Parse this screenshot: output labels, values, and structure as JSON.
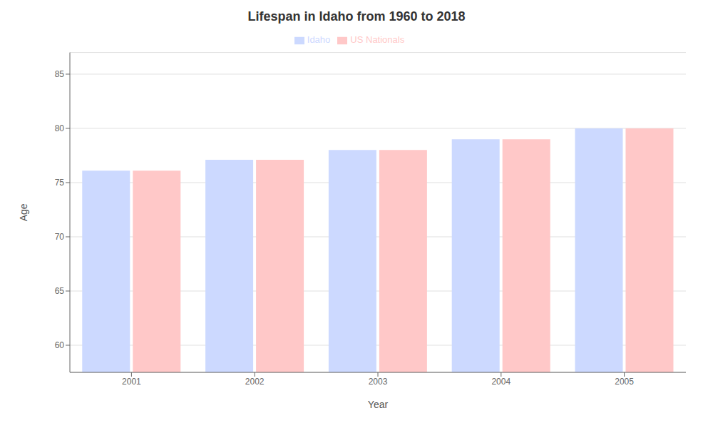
{
  "chart_data": {
    "type": "bar",
    "title": "Lifespan in Idaho from 1960 to 2018",
    "x_label": "Year",
    "y_label": "Age",
    "categories": [
      "2001",
      "2002",
      "2003",
      "2004",
      "2005"
    ],
    "series": [
      {
        "name": "Idaho",
        "color": "#ccd9ff",
        "values": [
          76.1,
          77.1,
          78.0,
          79.0,
          80.0
        ]
      },
      {
        "name": "US Nationals",
        "color": "#ffc8c8",
        "values": [
          76.1,
          77.1,
          78.0,
          79.0,
          80.0
        ]
      }
    ],
    "ylim": [
      57.5,
      87
    ],
    "yticks": [
      60,
      65,
      70,
      75,
      80,
      85
    ],
    "grid": true,
    "legend": "top"
  }
}
